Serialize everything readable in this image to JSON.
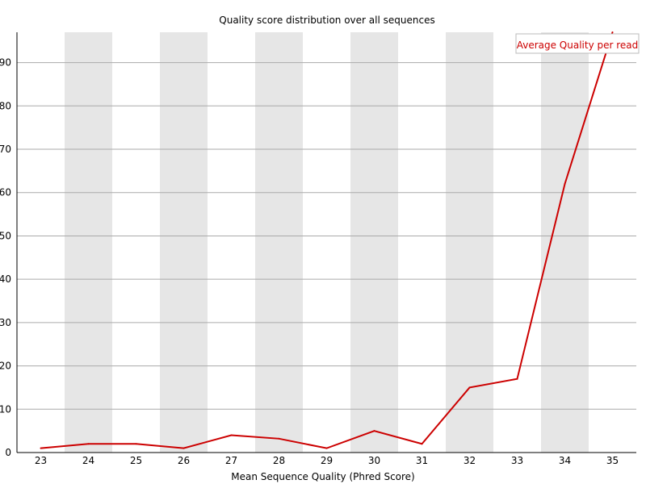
{
  "chart_data": {
    "type": "line",
    "title": "Quality score distribution over all sequences",
    "xlabel": "Mean Sequence Quality (Phred Score)",
    "ylabel": "",
    "x": [
      23,
      24,
      25,
      26,
      27,
      28,
      29,
      30,
      31,
      32,
      33,
      34,
      35
    ],
    "xlim": [
      22.5,
      35.5
    ],
    "ylim": [
      0,
      97
    ],
    "yticks": [
      0,
      10,
      20,
      30,
      40,
      50,
      60,
      70,
      80,
      90
    ],
    "grid": true,
    "legend_position": "top-right",
    "series": [
      {
        "name": "Average Quality per read",
        "color": "#cc0000",
        "values": [
          1,
          2,
          2,
          1,
          4,
          3.2,
          1,
          5,
          2,
          15,
          17,
          62,
          97
        ]
      }
    ]
  }
}
